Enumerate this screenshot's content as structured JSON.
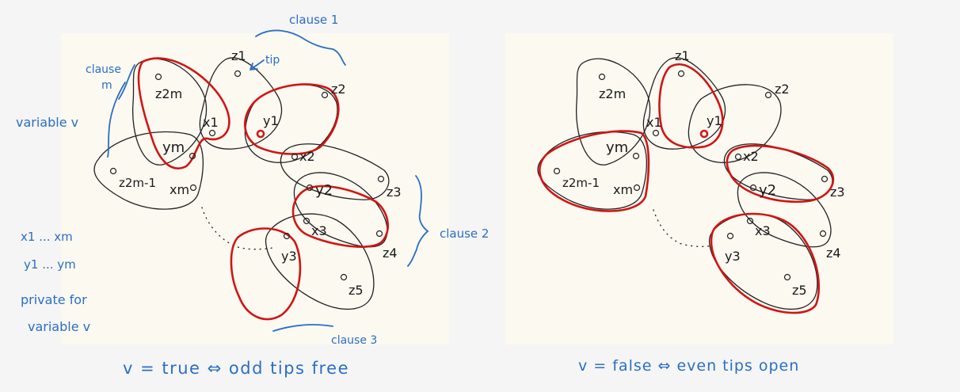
{
  "left_panel": {
    "annotations": {
      "clause_1": "clause 1",
      "clause_m_a": "clause",
      "clause_m_b": "m",
      "tip": "tip",
      "variable_v": "variable v",
      "clause_2": "clause 2",
      "clause_3": "clause 3",
      "x_list": "x1 ... xm",
      "y_list": "y1 ... ym",
      "private_a": "private for",
      "private_b": "variable v"
    },
    "caption": "v = true ⇔ odd tips free"
  },
  "right_panel": {
    "caption": "v = false ⇔ even tips open"
  },
  "vertex_labels": {
    "z1": "z1",
    "z2": "z2",
    "z2m": "z2m",
    "z2m1": "z2m-1",
    "z3": "z3",
    "z4": "z4",
    "z5": "z5",
    "x1": "x1",
    "y1": "y1",
    "ym": "ym",
    "xm": "xm",
    "x2": "x2",
    "y2": "y2",
    "x3": "x3",
    "y3": "y3"
  }
}
